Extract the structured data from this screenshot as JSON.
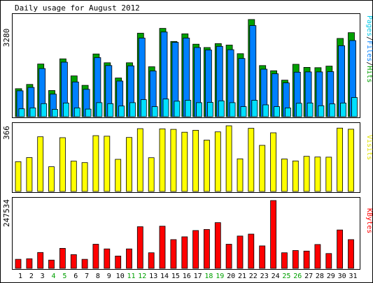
{
  "chart_data": {
    "type": "bar",
    "title": "Daily usage for August 2012",
    "days": [
      1,
      2,
      3,
      4,
      5,
      6,
      7,
      8,
      9,
      10,
      11,
      12,
      13,
      14,
      15,
      16,
      17,
      18,
      19,
      20,
      21,
      22,
      23,
      24,
      25,
      26,
      27,
      28,
      29,
      30,
      31
    ],
    "weekend_days": [
      4,
      5,
      11,
      12,
      18,
      19,
      25,
      26
    ],
    "hits_panel": {
      "ymax": 3280,
      "ymax_label": "3280",
      "legend": [
        "Pages",
        "Files",
        "Hits"
      ],
      "series": [
        {
          "name": "Hits",
          "color": "#00a000",
          "values": [
            920,
            1060,
            1730,
            860,
            1900,
            1340,
            1030,
            2060,
            1770,
            1270,
            1770,
            2740,
            1640,
            2900,
            2470,
            2720,
            2380,
            2270,
            2400,
            2350,
            2070,
            3190,
            1680,
            1510,
            1200,
            1720,
            1620,
            1610,
            1660,
            2570,
            2760
          ]
        },
        {
          "name": "Files",
          "color": "#0080ff",
          "values": [
            850,
            960,
            1580,
            740,
            1790,
            1140,
            900,
            1940,
            1680,
            1170,
            1670,
            2580,
            1500,
            2780,
            2440,
            2580,
            2270,
            2190,
            2310,
            2200,
            1910,
            2990,
            1560,
            1410,
            1110,
            1460,
            1470,
            1470,
            1480,
            2330,
            2500
          ]
        },
        {
          "name": "Pages",
          "color": "#00e0ff",
          "values": [
            260,
            290,
            430,
            240,
            450,
            290,
            250,
            460,
            430,
            350,
            460,
            560,
            330,
            580,
            510,
            540,
            460,
            470,
            520,
            460,
            330,
            540,
            390,
            330,
            290,
            440,
            450,
            360,
            420,
            450,
            630
          ]
        }
      ]
    },
    "visits_panel": {
      "ymax": 366,
      "ymax_label": "366",
      "legend": [
        "Visits"
      ],
      "series": [
        {
          "name": "Visits",
          "color": "#ffff00",
          "values": [
            166,
            189,
            305,
            138,
            300,
            169,
            161,
            311,
            308,
            179,
            301,
            350,
            188,
            349,
            346,
            330,
            341,
            286,
            332,
            366,
            182,
            352,
            257,
            327,
            181,
            170,
            196,
            192,
            191,
            353,
            347
          ]
        }
      ]
    },
    "kbytes_panel": {
      "ymax": 247534,
      "ymax_label": "247534",
      "legend": [
        "KBytes"
      ],
      "series": [
        {
          "name": "KBytes",
          "color": "#ff0000",
          "values": [
            33000,
            35000,
            58000,
            30000,
            73000,
            50000,
            33000,
            88000,
            71000,
            45000,
            71000,
            152000,
            57000,
            154000,
            105000,
            115000,
            138000,
            142000,
            167000,
            88000,
            118000,
            125000,
            82000,
            247534,
            57000,
            65000,
            63000,
            87000,
            54000,
            140000,
            105000
          ]
        }
      ]
    }
  }
}
